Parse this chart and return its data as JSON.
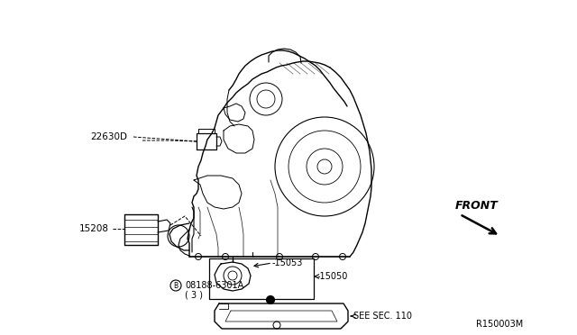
{
  "bg_color": "#ffffff",
  "diagram_ref": "R150003M",
  "fig_width": 6.4,
  "fig_height": 3.72,
  "dpi": 100,
  "labels": {
    "part_22630D": "22630D",
    "part_15208": "15208",
    "part_15053": "-15053",
    "part_15050": "-15050",
    "part_08188": "08188-6301A",
    "part_08188_qty": "( 3 )",
    "part_sec110": "SEE SEC. 110",
    "front_text": "FRONT",
    "ref_text": "R150003M"
  }
}
